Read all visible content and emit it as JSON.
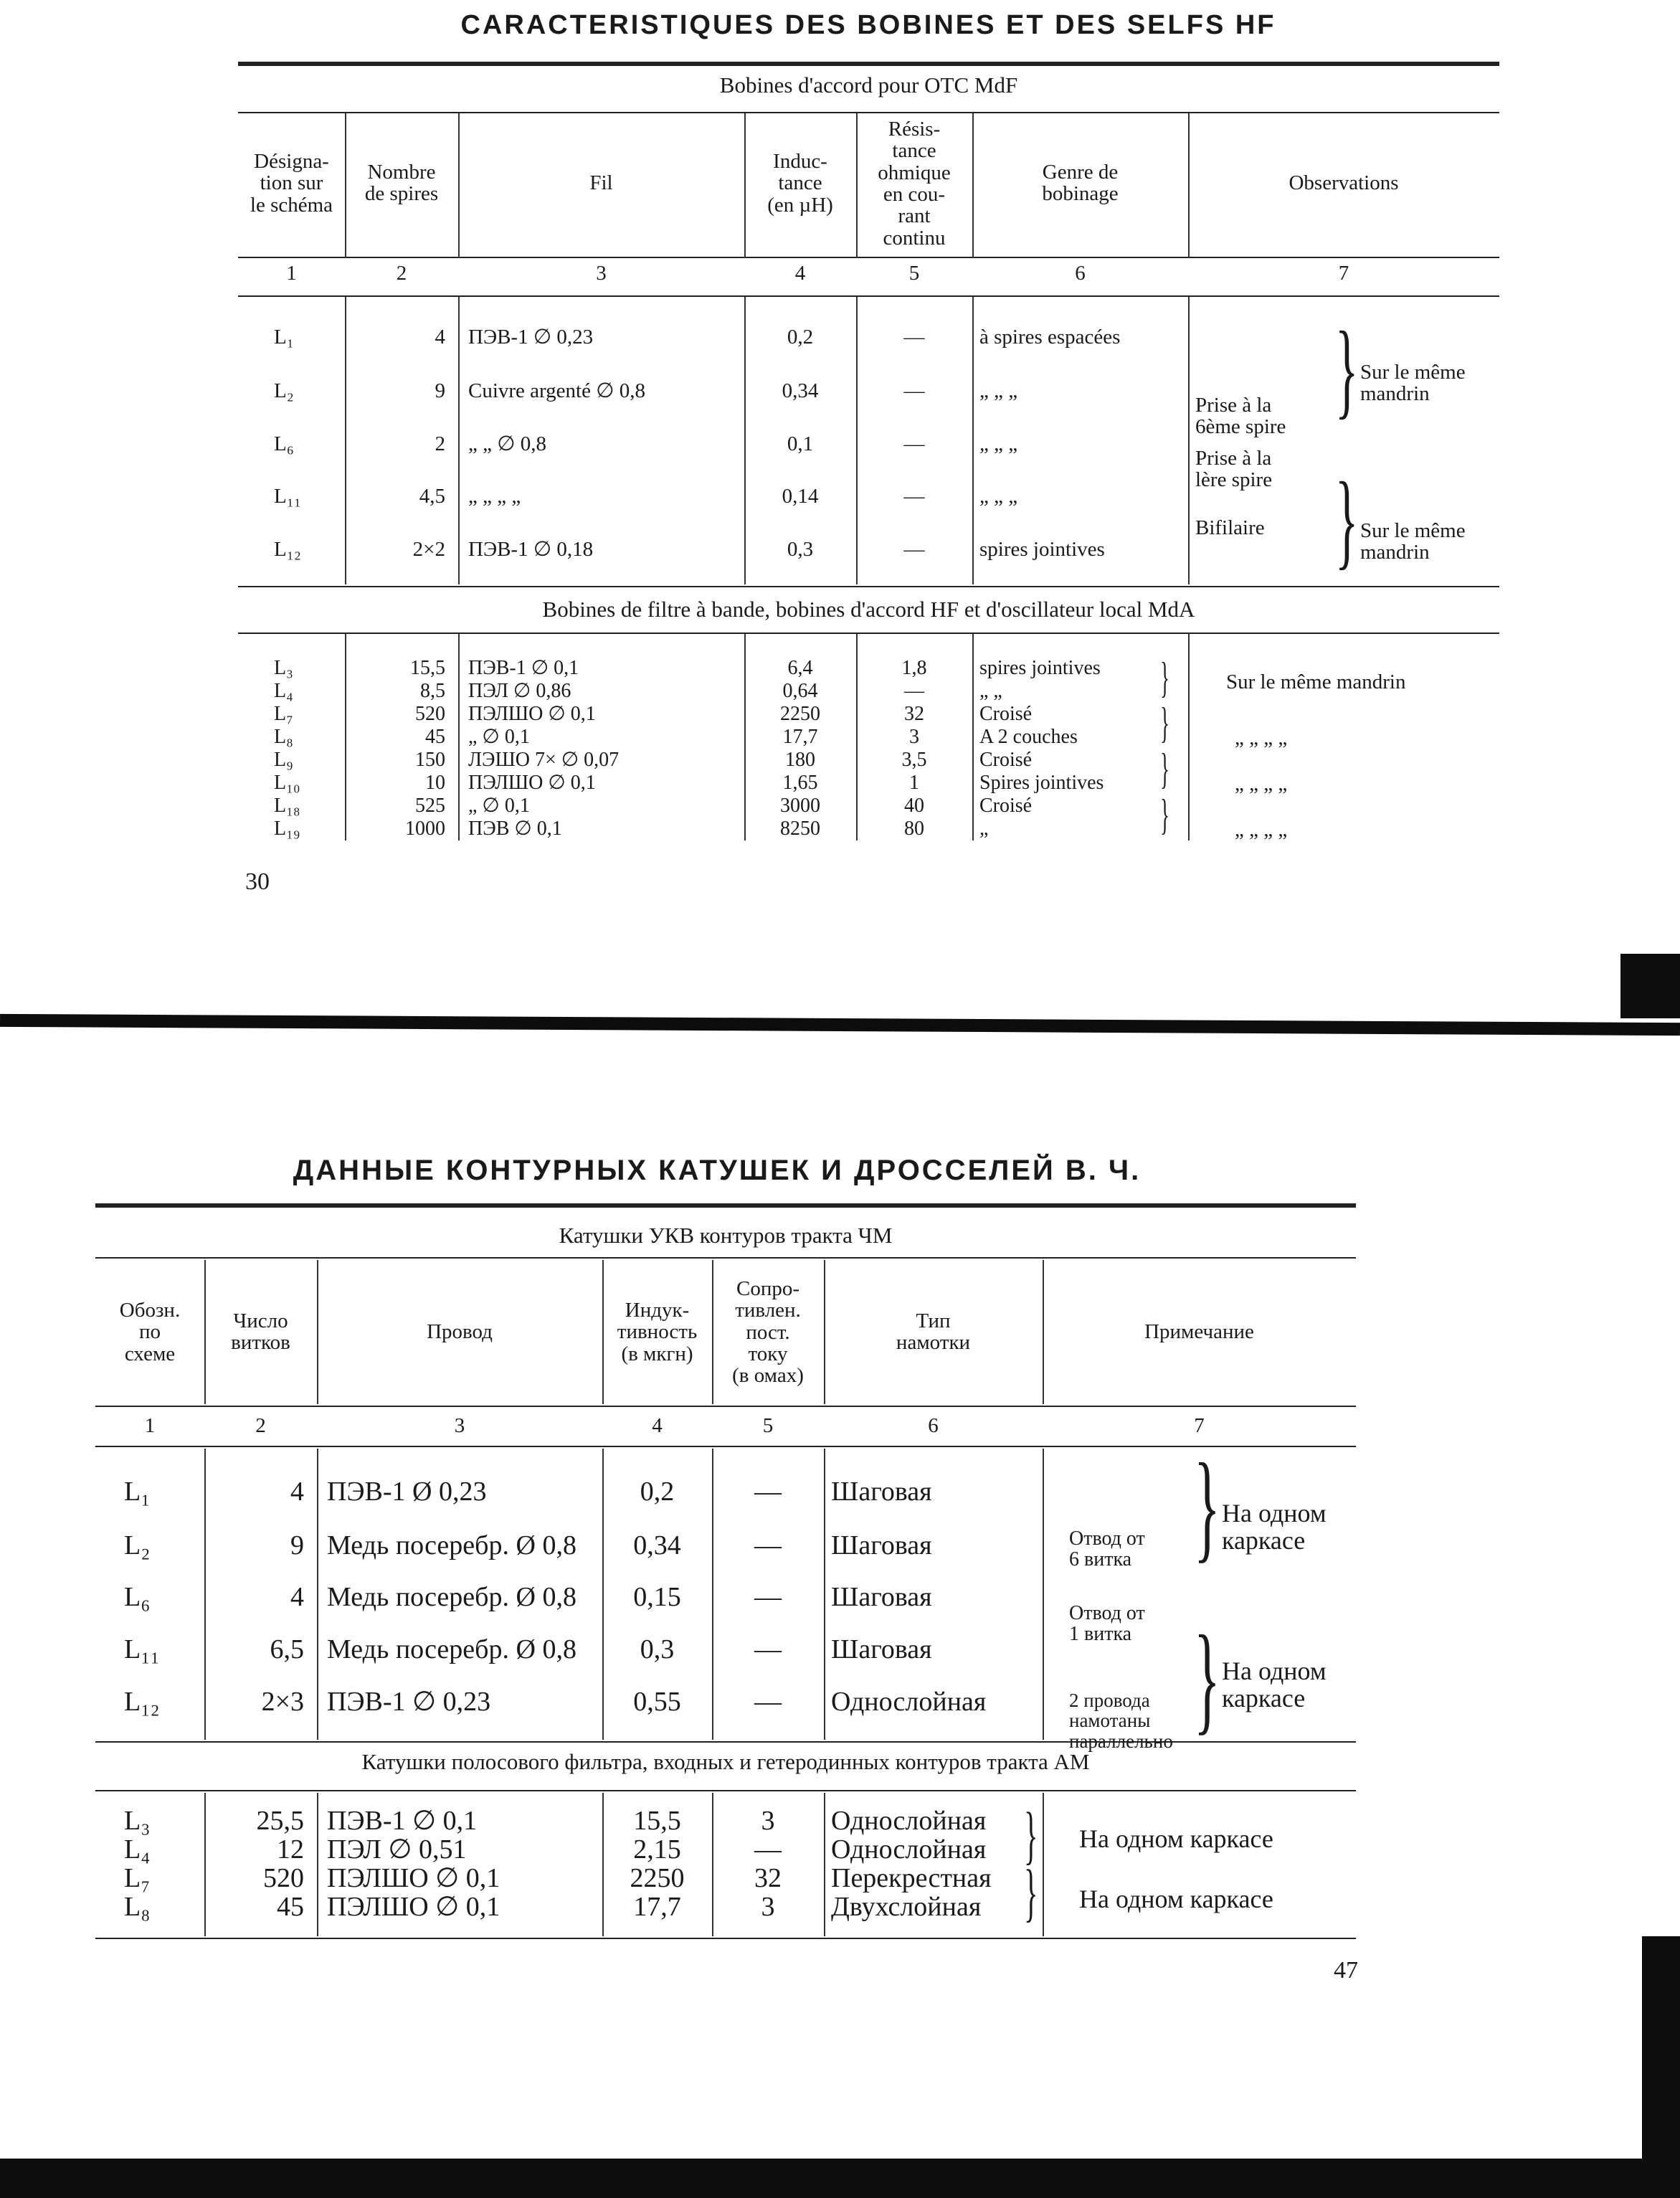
{
  "top_page": {
    "title": "CARACTERISTIQUES DES BOBINES ET DES SELFS HF",
    "subtitle": "Bobines d'accord pour OTC MdF",
    "headers": [
      "Désigna-\ntion sur\nle schéma",
      "Nombre\nde spires",
      "Fil",
      "Induc-\ntance\n(en µH)",
      "Résis-\ntance\nohmique\nen cou-\nrant\ncontinu",
      "Genre de\nbobinage",
      "Observations"
    ],
    "col_numbers": [
      "1",
      "2",
      "3",
      "4",
      "5",
      "6",
      "7"
    ],
    "group1_rows": [
      [
        "L₁",
        "4",
        "ПЭВ-1 ∅ 0,23",
        "0,2",
        "—",
        "à spires espacées"
      ],
      [
        "L₂",
        "9",
        "Cuivre argenté ∅ 0,8",
        "0,34",
        "—",
        "„     „        „"
      ],
      [
        "L₆",
        "2",
        "„       „       ∅ 0,8",
        "0,1",
        "—",
        "„     „        „"
      ],
      [
        "L₁₁",
        "4,5",
        "„       „       „   „",
        "0,14",
        "—",
        "„     „        „"
      ],
      [
        "L₁₂",
        "2×2",
        "ПЭВ-1 ∅ 0,18",
        "0,3",
        "—",
        "spires jointives"
      ]
    ],
    "group1_notes": {
      "same_mandrel_1": "Sur le même\nmandrin",
      "tap_6": "Prise à la\n6ème spire",
      "tap_1": "Prise à la\nlère spire",
      "bifilar": "Bifilaire",
      "same_mandrel_2": "Sur le même\nmandrin"
    },
    "section2": "Bobines de filtre à bande, bobines d'accord HF et d'oscillateur local MdA",
    "group2_rows": [
      [
        "L₃",
        "15,5",
        "ПЭВ-1 ∅ 0,1",
        "6,4",
        "1,8",
        "spires jointives"
      ],
      [
        "L₄",
        "8,5",
        "ПЭЛ ∅ 0,86",
        "0,64",
        "—",
        "„       „"
      ],
      [
        "L₇",
        "520",
        "ПЭЛШО ∅ 0,1",
        "2250",
        "32",
        "Croisé"
      ],
      [
        "L₈",
        "45",
        "„      ∅ 0,1",
        "17,7",
        "3",
        "A 2 couches"
      ],
      [
        "L₉",
        "150",
        "ЛЭШО 7× ∅ 0,07",
        "180",
        "3,5",
        "Croisé"
      ],
      [
        "L₁₀",
        "10",
        "ПЭЛШО ∅ 0,1",
        "1,65",
        "1",
        "Spires jointives"
      ],
      [
        "L₁₈",
        "525",
        "„      ∅ 0,1",
        "3000",
        "40",
        "Croisé"
      ],
      [
        "L₁₉",
        "1000",
        "ПЭВ ∅ 0,1",
        "8250",
        "80",
        "„"
      ]
    ],
    "group2_notes": {
      "same_mandrel": "Sur le même mandrin",
      "ditto_1": "„    „    „      „",
      "ditto_2": "„    „    „      „",
      "ditto_3": "„    „    „      „"
    },
    "page_number": "30"
  },
  "bottom_page": {
    "title": "ДАННЫЕ КОНТУРНЫХ КАТУШЕК И ДРОССЕЛЕЙ В. Ч.",
    "subtitle": "Катушки УКВ контуров тракта ЧМ",
    "headers": [
      "Обозн.\nпо\nсхеме",
      "Число\nвитков",
      "Провод",
      "Индук-\nтивность\n(в мкгн)",
      "Сопро-\nтивлен.\nпост.\nтоку\n(в омах)",
      "Тип\nнамотки",
      "Примечание"
    ],
    "col_numbers": [
      "1",
      "2",
      "3",
      "4",
      "5",
      "6",
      "7"
    ],
    "group1_rows": [
      [
        "L₁",
        "4",
        "ПЭВ-1 Ø 0,23",
        "0,2",
        "—",
        "Шаговая"
      ],
      [
        "L₂",
        "9",
        "Медь посеребр. Ø 0,8",
        "0,34",
        "—",
        "Шаговая"
      ],
      [
        "L₆",
        "4",
        "Медь посеребр. Ø 0,8",
        "0,15",
        "—",
        "Шаговая"
      ],
      [
        "L₁₁",
        "6,5",
        "Медь посеребр. Ø 0,8",
        "0,3",
        "—",
        "Шаговая"
      ],
      [
        "L₁₂",
        "2×3",
        "ПЭВ-1 ∅ 0,23",
        "0,55",
        "—",
        "Однослойная"
      ]
    ],
    "group1_notes": {
      "same_frame_1": "На одном\nкаркасе",
      "tap_6": "Отвод от\n6 витка",
      "tap_1": "Отвод от\n1 витка",
      "parallel": "2 провода\nнамотаны\nпараллельно",
      "same_frame_2": "На одном\nкаркасе"
    },
    "section2": "Катушки полосового фильтра, входных и гетеродинных контуров тракта АМ",
    "group2_rows": [
      [
        "L₃",
        "25,5",
        "ПЭВ-1 ∅ 0,1",
        "15,5",
        "3",
        "Однослойная"
      ],
      [
        "L₄",
        "12",
        "ПЭЛ ∅ 0,51",
        "2,15",
        "—",
        "Однослойная"
      ],
      [
        "L₇",
        "520",
        "ПЭЛШО ∅ 0,1",
        "2250",
        "32",
        "Перекрестная"
      ],
      [
        "L₈",
        "45",
        "ПЭЛШО ∅ 0,1",
        "17,7",
        "3",
        "Двухслойная"
      ]
    ],
    "group2_notes": {
      "same_frame_1": "На одном каркасе",
      "same_frame_2": "На одном каркасе"
    },
    "page_number": "47"
  }
}
